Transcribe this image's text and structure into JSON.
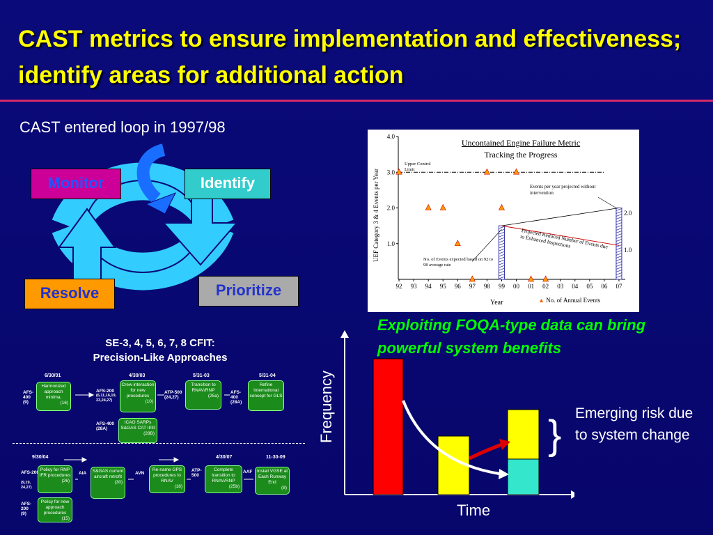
{
  "title": "CAST metrics to ensure implementation and effectiveness; identify areas for additional action",
  "loop": {
    "caption": "CAST entered loop in 1997/98",
    "monitor": "Monitor",
    "identify": "Identify",
    "prioritize": "Prioritize",
    "resolve": "Resolve"
  },
  "chart_data": [
    {
      "type": "scatter",
      "title": "Uncontained Engine Failure Metric",
      "subtitle": "Tracking the Progress",
      "xlabel": "Year",
      "ylabel": "UEF Category 3 & 4 Events per Year",
      "x_ticks": [
        "92",
        "93",
        "94",
        "95",
        "96",
        "97",
        "98",
        "99",
        "00",
        "01",
        "02",
        "03",
        "04",
        "05",
        "06",
        "07"
      ],
      "y_ticks": [
        "1.0",
        "2.0",
        "3.0",
        "4.0"
      ],
      "ylim": [
        0,
        4
      ],
      "upper_control_limit": 3.0,
      "upper_control_label": "Upper Control Limit",
      "series": [
        {
          "name": "No. of Annual Events",
          "x": [
            "92",
            "94",
            "95",
            "96",
            "98",
            "99",
            "00",
            "01",
            "02"
          ],
          "y": [
            3,
            2,
            2,
            1,
            3,
            2,
            3,
            0,
            0
          ]
        },
        {
          "name": "",
          "x": [
            "97"
          ],
          "y": [
            0
          ]
        }
      ],
      "bars": [
        {
          "x": "99",
          "value": 1.5
        },
        {
          "x": "07",
          "value": 2.0
        }
      ],
      "right_labels": [
        "2.0",
        "1.0"
      ],
      "annotations": {
        "projected_no_intervention": "Events per year projected without intervention",
        "projected_reduced": "Projected Reduced Number of Events due to Enhanced Inspections",
        "expected_average": "No. of Events expected based on 92 to 98 average rate"
      },
      "legend_label": "No. of Annual Events"
    },
    {
      "type": "bar",
      "xlabel": "Time",
      "ylabel": "Frequency",
      "annotation": "Emerging risk due to system change"
    }
  ],
  "foqa": {
    "caption": "Exploiting FOQA-type data can bring powerful system benefits",
    "emerging": "Emerging risk due to system change",
    "xlabel": "Time",
    "ylabel": "Frequency"
  },
  "timeline": {
    "caption_line1": "SE-3, 4, 5, 6, 7, 8     CFIT:",
    "caption_line2": "Precision-Like Approaches",
    "top_dates": [
      "6/30/01",
      "4/30/03",
      "5/31-03",
      "5/31-04"
    ],
    "bottom_dates": [
      "9/30/04",
      "4/30/07",
      "11-30-09"
    ],
    "top_tags": [
      {
        "tag": "AFS-400",
        "sub": "(9)"
      },
      {
        "tag": "AFS-200",
        "sub": "(6,11,16,19, 23,24,27)"
      },
      {
        "tag": "ATP-500",
        "sub": "(24,27)"
      },
      {
        "tag": "AFS-400",
        "sub": "(28A)"
      },
      {
        "tag": "AFS-400",
        "sub": "(28A)"
      }
    ],
    "top_boxes": [
      {
        "text": "Harmonized approach minima.",
        "num": "(16)"
      },
      {
        "text": "Crew interaction for new procedures",
        "num": "(10)"
      },
      {
        "text": "Transition to RNAV/RNP",
        "num": "(25a)"
      },
      {
        "text": "Refine International concept for GLS",
        "num": ""
      },
      {
        "text": "ICAO SARPs S&GAS CAT II/III",
        "num": "(28B)"
      }
    ],
    "bottom_tags": [
      {
        "tag": "AFS-200",
        "sub": "(9,19, 24,27)"
      },
      {
        "tag": "AIA",
        "sub": ""
      },
      {
        "tag": "AVN",
        "sub": ""
      },
      {
        "tag": "ATP-500",
        "sub": ""
      },
      {
        "tag": "AAF",
        "sub": ""
      },
      {
        "tag": "AFS-200",
        "sub": "(9)"
      }
    ],
    "bottom_boxes": [
      {
        "text": "Policy for RNP IFR procedures",
        "num": "(26)"
      },
      {
        "text": "S&GAS current aircraft retrofit",
        "num": "(30)"
      },
      {
        "text": "Re-name GPS procedures to RNAV",
        "num": "(18)"
      },
      {
        "text": "Complete transition to RNAV/RNP",
        "num": "(25b)"
      },
      {
        "text": "Install VGSE at Each Runway End",
        "num": "(8)"
      },
      {
        "text": "Policy for new approach procedures",
        "num": "(15)"
      }
    ]
  }
}
